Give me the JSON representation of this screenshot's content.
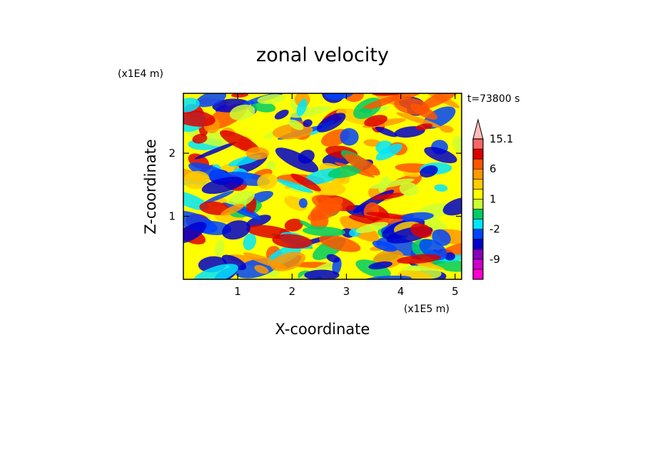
{
  "chart_data": {
    "type": "heatmap",
    "title": "zonal velocity",
    "xlabel": "X-coordinate",
    "ylabel": "Z-coordinate",
    "x_scale_label": "(x1E5 m)",
    "y_scale_label": "(x1E4 m)",
    "time_label": "t=73800 s",
    "xlim": [
      0,
      5.12
    ],
    "ylim": [
      0,
      2.95
    ],
    "x_ticks": [
      1,
      2,
      3,
      4,
      5
    ],
    "y_ticks": [
      1,
      2
    ],
    "x_tick_labels": [
      "1",
      "2",
      "3",
      "4",
      "5"
    ],
    "y_tick_labels": [
      "1",
      "2"
    ],
    "colorbar": {
      "levels": [
        -15,
        -12,
        -9,
        -6,
        -3,
        -2,
        -1,
        0,
        1,
        2,
        3,
        6,
        9,
        12,
        15.1
      ],
      "colors": [
        "#ff00cc",
        "#cc00cc",
        "#8800bb",
        "#0000cc",
        "#0044ff",
        "#00e5ff",
        "#00cc66",
        "#ccff33",
        "#ffff00",
        "#ffcc00",
        "#ff9900",
        "#ff5500",
        "#dd0000",
        "#ff6666",
        "#ffbbbb"
      ],
      "tick_labels": [
        "15.1",
        "6",
        "1",
        "-2",
        "-9"
      ],
      "tick_values": [
        15.1,
        6,
        1,
        -2,
        -9
      ],
      "extend_max": true
    }
  }
}
